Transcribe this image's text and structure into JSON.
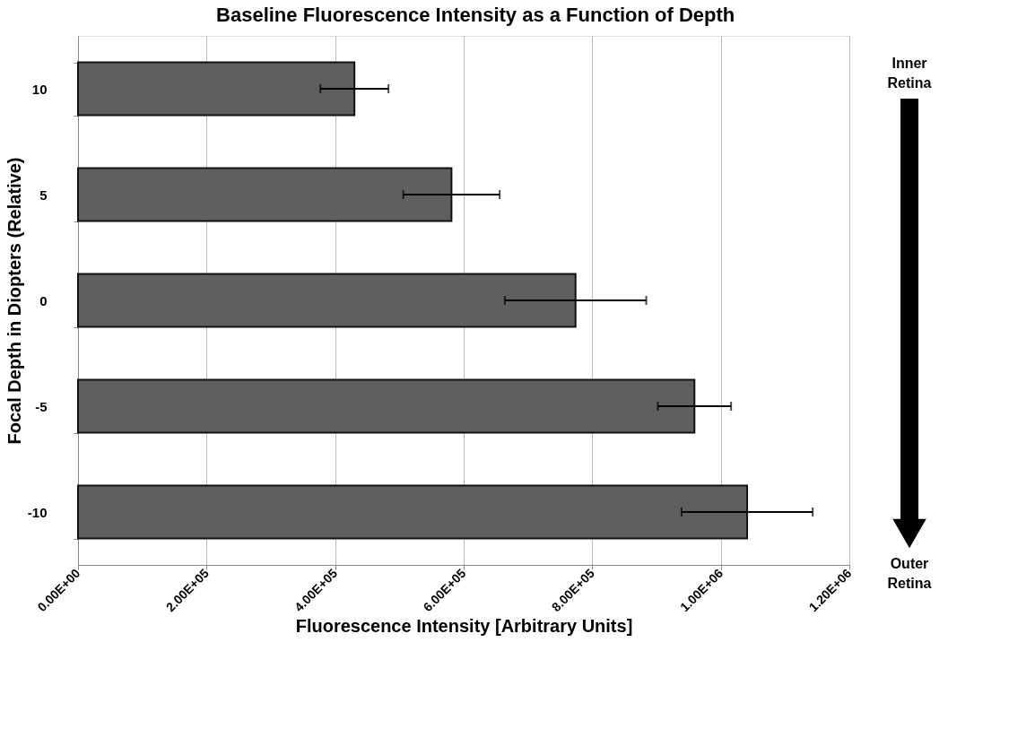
{
  "chart_data": {
    "type": "bar",
    "orientation": "horizontal",
    "title": "Baseline Fluorescence Intensity as a Function of Depth",
    "xlabel": "Fluorescence Intensity [Arbitrary Units]",
    "ylabel": "Focal Depth in Diopters (Relative)",
    "categories": [
      "10",
      "5",
      "0",
      "-5",
      "-10"
    ],
    "values": [
      430000,
      581000,
      774000,
      959000,
      1041000
    ],
    "errors": [
      53000,
      75000,
      110000,
      57000,
      102000
    ],
    "color": "#5f5f5f",
    "xlim": [
      0,
      1200000
    ],
    "xticks": [
      {
        "value": 0,
        "label": "0.00E+00"
      },
      {
        "value": 200000,
        "label": "2.00E+05"
      },
      {
        "value": 400000,
        "label": "4.00E+05"
      },
      {
        "value": 600000,
        "label": "6.00E+05"
      },
      {
        "value": 800000,
        "label": "8.00E+05"
      },
      {
        "value": 1000000,
        "label": "1.00E+06"
      },
      {
        "value": 1200000,
        "label": "1.20E+06"
      }
    ],
    "grid": "x",
    "annotations": [
      "Inner Retina",
      "Outer Retina"
    ]
  }
}
